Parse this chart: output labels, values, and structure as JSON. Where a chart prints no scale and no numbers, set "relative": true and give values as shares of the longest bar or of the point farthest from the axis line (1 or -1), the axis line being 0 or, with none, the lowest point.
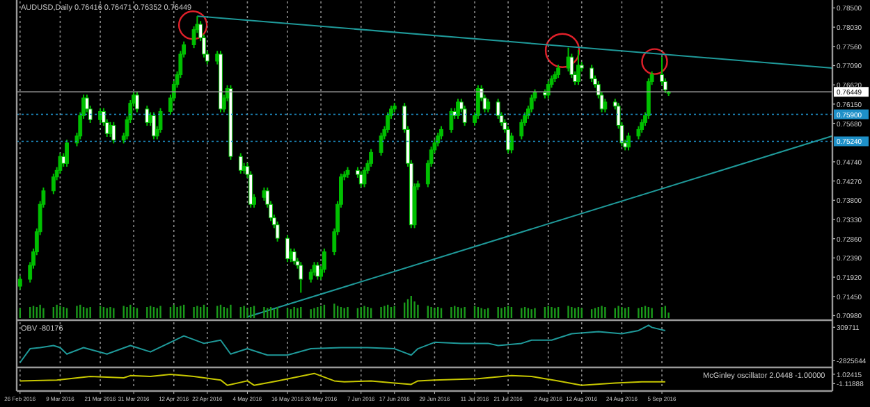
{
  "chart_data": [
    {
      "type": "candlestick",
      "title": "AUDUSD,Daily 0.76416 0.76471 0.76352 0.76449",
      "color": "#00c000",
      "grid": "x",
      "tick_labels": "y",
      "xlim": [
        "2016-02-25",
        "2016-10-26"
      ],
      "xticks": [
        {
          "value": "2016-02-26",
          "label": null
        },
        {
          "value": "2016-03-09",
          "label": null
        },
        {
          "value": "2016-03-21",
          "label": null
        },
        {
          "value": "2016-03-31",
          "label": null
        },
        {
          "value": "2016-04-12",
          "label": null
        },
        {
          "value": "2016-04-22",
          "label": null
        },
        {
          "value": "2016-05-04",
          "label": null
        },
        {
          "value": "2016-05-16",
          "label": null
        },
        {
          "value": "2016-05-26",
          "label": null
        },
        {
          "value": "2016-06-07",
          "label": null
        },
        {
          "value": "2016-06-17",
          "label": null
        },
        {
          "value": "2016-06-29",
          "label": null
        },
        {
          "value": "2016-07-11",
          "label": null
        },
        {
          "value": "2016-07-21",
          "label": null
        },
        {
          "value": "2016-08-02",
          "label": null
        },
        {
          "value": "2016-08-12",
          "label": null
        },
        {
          "value": "2016-08-24",
          "label": null
        },
        {
          "value": "2016-09-05",
          "label": null
        }
      ],
      "ylim": [
        0.7092,
        0.7866
      ],
      "yticks": [
        {
          "value": 0.785,
          "label": "0.78500"
        },
        {
          "value": 0.7803,
          "label": "0.78030"
        },
        {
          "value": 0.7756,
          "label": "0.77560"
        },
        {
          "value": 0.7709,
          "label": "0.77090"
        },
        {
          "value": 0.7662,
          "label": "0.76620"
        },
        {
          "value": 0.7615,
          "label": "0.76150"
        },
        {
          "value": 0.7568,
          "label": "0.75680"
        },
        {
          "value": 0.7474,
          "label": "0.74740"
        },
        {
          "value": 0.7427,
          "label": "0.74270"
        },
        {
          "value": 0.738,
          "label": "0.73800"
        },
        {
          "value": 0.7333,
          "label": "0.73330"
        },
        {
          "value": 0.7286,
          "label": "0.72860"
        },
        {
          "value": 0.7239,
          "label": "0.72390"
        },
        {
          "value": 0.7192,
          "label": "0.71920"
        },
        {
          "value": 0.7145,
          "label": "0.71450"
        },
        {
          "value": 0.7098,
          "label": "0.70980"
        }
      ],
      "ref_lines": [
        {
          "axis": "y",
          "value": 0.76449,
          "label": "0.76449",
          "color": "#a0a0a0",
          "line_style": "solid"
        },
        {
          "axis": "y",
          "value": 0.759,
          "label": "0.75900",
          "color": "#1e90c8",
          "line_style": "dotted"
        },
        {
          "axis": "y",
          "value": 0.7524,
          "label": "0.75240",
          "color": "#1e90c8",
          "line_style": "dotted"
        }
      ],
      "x": [
        "2016-02-26",
        "2016-02-29",
        "2016-03-01",
        "2016-03-02",
        "2016-03-03",
        "2016-03-04",
        "2016-03-07",
        "2016-03-08",
        "2016-03-09",
        "2016-03-10",
        "2016-03-11",
        "2016-03-14",
        "2016-03-15",
        "2016-03-16",
        "2016-03-17",
        "2016-03-18",
        "2016-03-21",
        "2016-03-22",
        "2016-03-23",
        "2016-03-24",
        "2016-03-25",
        "2016-03-28",
        "2016-03-29",
        "2016-03-30",
        "2016-03-31",
        "2016-04-01",
        "2016-04-04",
        "2016-04-05",
        "2016-04-06",
        "2016-04-07",
        "2016-04-08",
        "2016-04-11",
        "2016-04-12",
        "2016-04-13",
        "2016-04-14",
        "2016-04-15",
        "2016-04-18",
        "2016-04-19",
        "2016-04-20",
        "2016-04-21",
        "2016-04-22",
        "2016-04-25",
        "2016-04-26",
        "2016-04-27",
        "2016-04-28",
        "2016-04-29",
        "2016-05-02",
        "2016-05-03",
        "2016-05-04",
        "2016-05-05",
        "2016-05-06",
        "2016-05-09",
        "2016-05-10",
        "2016-05-11",
        "2016-05-12",
        "2016-05-13",
        "2016-05-16",
        "2016-05-17",
        "2016-05-18",
        "2016-05-19",
        "2016-05-20",
        "2016-05-23",
        "2016-05-24",
        "2016-05-25",
        "2016-05-26",
        "2016-05-27",
        "2016-05-30",
        "2016-05-31",
        "2016-06-01",
        "2016-06-02",
        "2016-06-03",
        "2016-06-06",
        "2016-06-07",
        "2016-06-08",
        "2016-06-09",
        "2016-06-10",
        "2016-06-13",
        "2016-06-14",
        "2016-06-15",
        "2016-06-16",
        "2016-06-17",
        "2016-06-20",
        "2016-06-21",
        "2016-06-22",
        "2016-06-23",
        "2016-06-24",
        "2016-06-27",
        "2016-06-28",
        "2016-06-29",
        "2016-06-30",
        "2016-07-01",
        "2016-07-04",
        "2016-07-05",
        "2016-07-06",
        "2016-07-07",
        "2016-07-08",
        "2016-07-11",
        "2016-07-12",
        "2016-07-13",
        "2016-07-14",
        "2016-07-15",
        "2016-07-18",
        "2016-07-19",
        "2016-07-20",
        "2016-07-21",
        "2016-07-22",
        "2016-07-25",
        "2016-07-26",
        "2016-07-27",
        "2016-07-28",
        "2016-07-29",
        "2016-08-01",
        "2016-08-02",
        "2016-08-03",
        "2016-08-04",
        "2016-08-05",
        "2016-08-08",
        "2016-08-09",
        "2016-08-10",
        "2016-08-11",
        "2016-08-12",
        "2016-08-15",
        "2016-08-16",
        "2016-08-17",
        "2016-08-18",
        "2016-08-19",
        "2016-08-22",
        "2016-08-23",
        "2016-08-24",
        "2016-08-25",
        "2016-08-26",
        "2016-08-29",
        "2016-08-30",
        "2016-08-31",
        "2016-09-01",
        "2016-09-02",
        "2016-09-05",
        "2016-09-06",
        "2016-09-07"
      ],
      "ohlc": [
        [
          0.717,
          0.7195,
          0.7162,
          0.7187
        ],
        [
          0.7187,
          0.7229,
          0.7179,
          0.7221
        ],
        [
          0.7221,
          0.7262,
          0.7213,
          0.7254
        ],
        [
          0.7254,
          0.7311,
          0.7246,
          0.7303
        ],
        [
          0.7303,
          0.7378,
          0.7295,
          0.737
        ],
        [
          0.737,
          0.7411,
          0.7362,
          0.7403
        ],
        [
          0.7403,
          0.7445,
          0.7395,
          0.7437
        ],
        [
          0.7437,
          0.7461,
          0.7429,
          0.7453
        ],
        [
          0.7453,
          0.7495,
          0.7445,
          0.7487
        ],
        [
          0.7487,
          0.7495,
          0.7462,
          0.747
        ],
        [
          0.747,
          0.7528,
          0.7462,
          0.752
        ],
        [
          0.752,
          0.7545,
          0.7512,
          0.7537
        ],
        [
          0.7537,
          0.7595,
          0.7529,
          0.7587
        ],
        [
          0.7587,
          0.7638,
          0.7579,
          0.763
        ],
        [
          0.763,
          0.7638,
          0.7595,
          0.7603
        ],
        [
          0.7603,
          0.7611,
          0.7569,
          0.7577
        ],
        [
          0.7577,
          0.7605,
          0.7569,
          0.7597
        ],
        [
          0.7597,
          0.7605,
          0.7562,
          0.757
        ],
        [
          0.757,
          0.7578,
          0.7535,
          0.7543
        ],
        [
          0.7543,
          0.7571,
          0.7535,
          0.7563
        ],
        [
          0.7563,
          0.7571,
          0.7519,
          0.7527
        ],
        [
          0.7527,
          0.7545,
          0.7519,
          0.7537
        ],
        [
          0.7537,
          0.7585,
          0.7529,
          0.7577
        ],
        [
          0.7577,
          0.7625,
          0.7569,
          0.7617
        ],
        [
          0.7617,
          0.7645,
          0.7609,
          0.7637
        ],
        [
          0.7637,
          0.7645,
          0.7595,
          0.7603
        ],
        [
          0.7603,
          0.7611,
          0.7562,
          0.757
        ],
        [
          0.757,
          0.7595,
          0.7562,
          0.7587
        ],
        [
          0.7587,
          0.7595,
          0.7529,
          0.7537
        ],
        [
          0.7537,
          0.7561,
          0.7529,
          0.7553
        ],
        [
          0.7553,
          0.7605,
          0.7545,
          0.7597
        ],
        [
          0.7597,
          0.7638,
          0.7589,
          0.763
        ],
        [
          0.763,
          0.7671,
          0.7622,
          0.7663
        ],
        [
          0.7663,
          0.7695,
          0.7655,
          0.7687
        ],
        [
          0.7687,
          0.7745,
          0.7679,
          0.7737
        ],
        [
          0.7737,
          0.7768,
          0.7729,
          0.776
        ],
        [
          0.776,
          0.7805,
          0.7752,
          0.7797
        ],
        [
          0.7797,
          0.783,
          0.7789,
          0.781
        ],
        [
          0.781,
          0.7818,
          0.7769,
          0.7777
        ],
        [
          0.7777,
          0.7785,
          0.7729,
          0.7737
        ],
        [
          0.7737,
          0.7745,
          0.7712,
          0.772
        ],
        [
          0.772,
          0.7745,
          0.7712,
          0.7737
        ],
        [
          0.7737,
          0.7745,
          0.7595,
          0.7603
        ],
        [
          0.7603,
          0.7638,
          0.7595,
          0.763
        ],
        [
          0.763,
          0.7661,
          0.7622,
          0.7653
        ],
        [
          0.7653,
          0.7661,
          0.7479,
          0.7487
        ],
        [
          0.7487,
          0.7495,
          0.7445,
          0.7453
        ],
        [
          0.7453,
          0.7471,
          0.7445,
          0.7463
        ],
        [
          0.7463,
          0.7471,
          0.7435,
          0.7443
        ],
        [
          0.7443,
          0.7451,
          0.7362,
          0.737
        ],
        [
          0.737,
          0.7395,
          0.7362,
          0.7387
        ],
        [
          0.7387,
          0.7411,
          0.7379,
          0.7403
        ],
        [
          0.7403,
          0.7411,
          0.7362,
          0.737
        ],
        [
          0.737,
          0.7378,
          0.7329,
          0.7337
        ],
        [
          0.7337,
          0.7345,
          0.7312,
          0.732
        ],
        [
          0.732,
          0.7328,
          0.7279,
          0.7287
        ],
        [
          0.7287,
          0.7295,
          0.7229,
          0.7237
        ],
        [
          0.7237,
          0.7262,
          0.7229,
          0.7254
        ],
        [
          0.7254,
          0.7262,
          0.7223,
          0.7231
        ],
        [
          0.7231,
          0.7239,
          0.7213,
          0.7221
        ],
        [
          0.7221,
          0.7229,
          0.7154,
          0.7187
        ],
        [
          0.7187,
          0.7212,
          0.7179,
          0.7204
        ],
        [
          0.7204,
          0.7229,
          0.7196,
          0.7221
        ],
        [
          0.7221,
          0.7229,
          0.7186,
          0.7194
        ],
        [
          0.7194,
          0.7219,
          0.7186,
          0.7211
        ],
        [
          0.7211,
          0.7262,
          0.7203,
          0.7254
        ],
        [
          0.7254,
          0.7311,
          0.7246,
          0.7303
        ],
        [
          0.7303,
          0.7378,
          0.7295,
          0.737
        ],
        [
          0.737,
          0.7445,
          0.7362,
          0.7437
        ],
        [
          0.7437,
          0.7451,
          0.7429,
          0.7443
        ],
        [
          0.7443,
          0.7461,
          0.7435,
          0.7453
        ],
        [
          0.7453,
          0.7461,
          0.7435,
          0.7443
        ],
        [
          0.7443,
          0.7451,
          0.7412,
          0.742
        ],
        [
          0.742,
          0.7461,
          0.7412,
          0.7453
        ],
        [
          0.7453,
          0.7478,
          0.7445,
          0.747
        ],
        [
          0.747,
          0.7505,
          0.7462,
          0.7497
        ],
        [
          0.7497,
          0.7545,
          0.7489,
          0.7537
        ],
        [
          0.7537,
          0.7561,
          0.7529,
          0.7553
        ],
        [
          0.7553,
          0.7595,
          0.7545,
          0.7587
        ],
        [
          0.7587,
          0.7611,
          0.7579,
          0.7603
        ],
        [
          0.7603,
          0.7618,
          0.7595,
          0.761
        ],
        [
          0.761,
          0.7618,
          0.7545,
          0.7553
        ],
        [
          0.7553,
          0.7561,
          0.7462,
          0.747
        ],
        [
          0.747,
          0.7478,
          0.7312,
          0.732
        ],
        [
          0.732,
          0.7421,
          0.7312,
          0.7413
        ],
        [
          0.7413,
          0.7428,
          0.7405,
          0.742
        ],
        [
          0.742,
          0.7478,
          0.7412,
          0.747
        ],
        [
          0.747,
          0.7511,
          0.7462,
          0.7503
        ],
        [
          0.7503,
          0.7528,
          0.7495,
          0.752
        ],
        [
          0.752,
          0.7545,
          0.7512,
          0.7537
        ],
        [
          0.7537,
          0.7561,
          0.7529,
          0.7553
        ],
        [
          0.7553,
          0.7605,
          0.7545,
          0.7597
        ],
        [
          0.7597,
          0.7605,
          0.7579,
          0.7587
        ],
        [
          0.7587,
          0.7628,
          0.7579,
          0.762
        ],
        [
          0.762,
          0.7628,
          0.7595,
          0.7603
        ],
        [
          0.7603,
          0.7611,
          0.7562,
          0.757
        ],
        [
          0.757,
          0.7595,
          0.7562,
          0.7587
        ],
        [
          0.7587,
          0.7661,
          0.7579,
          0.7653
        ],
        [
          0.7653,
          0.7661,
          0.7622,
          0.763
        ],
        [
          0.763,
          0.7638,
          0.7595,
          0.7603
        ],
        [
          0.7603,
          0.7628,
          0.7595,
          0.762
        ],
        [
          0.762,
          0.7628,
          0.7579,
          0.7587
        ],
        [
          0.7587,
          0.7595,
          0.7562,
          0.757
        ],
        [
          0.757,
          0.7578,
          0.7545,
          0.7553
        ],
        [
          0.7553,
          0.7561,
          0.7495,
          0.7503
        ],
        [
          0.7503,
          0.7545,
          0.7495,
          0.7537
        ],
        [
          0.7537,
          0.7578,
          0.7529,
          0.757
        ],
        [
          0.757,
          0.7595,
          0.7562,
          0.7587
        ],
        [
          0.7587,
          0.7611,
          0.7579,
          0.7603
        ],
        [
          0.7603,
          0.7638,
          0.7595,
          0.763
        ],
        [
          0.763,
          0.7651,
          0.7622,
          0.7643
        ],
        [
          0.7643,
          0.7651,
          0.7629,
          0.7637
        ],
        [
          0.7637,
          0.7671,
          0.7629,
          0.7663
        ],
        [
          0.7663,
          0.7685,
          0.7655,
          0.7677
        ],
        [
          0.7677,
          0.7695,
          0.7669,
          0.7687
        ],
        [
          0.7687,
          0.7711,
          0.7679,
          0.7703
        ],
        [
          0.7703,
          0.7753,
          0.7695,
          0.773
        ],
        [
          0.773,
          0.7738,
          0.7679,
          0.7687
        ],
        [
          0.7687,
          0.7695,
          0.7662,
          0.767
        ],
        [
          0.767,
          0.7747,
          0.7662,
          0.771
        ],
        [
          0.771,
          0.7718,
          0.7695,
          0.7703
        ],
        [
          0.7703,
          0.7711,
          0.7669,
          0.7677
        ],
        [
          0.7677,
          0.7685,
          0.7655,
          0.7663
        ],
        [
          0.7663,
          0.7671,
          0.7629,
          0.7637
        ],
        [
          0.7637,
          0.7645,
          0.7595,
          0.7603
        ],
        [
          0.7603,
          0.7628,
          0.7595,
          0.762
        ],
        [
          0.762,
          0.7628,
          0.7602,
          0.761
        ],
        [
          0.761,
          0.7618,
          0.7555,
          0.7563
        ],
        [
          0.7563,
          0.7571,
          0.7512,
          0.752
        ],
        [
          0.752,
          0.7528,
          0.7502,
          0.751
        ],
        [
          0.751,
          0.7545,
          0.7502,
          0.7537
        ],
        [
          0.7537,
          0.7561,
          0.7529,
          0.7553
        ],
        [
          0.7553,
          0.7578,
          0.7545,
          0.757
        ],
        [
          0.757,
          0.7595,
          0.7562,
          0.7587
        ],
        [
          0.7587,
          0.7678,
          0.7579,
          0.767
        ],
        [
          0.767,
          0.7695,
          0.7662,
          0.7687
        ],
        [
          0.7687,
          0.773,
          0.7662,
          0.767
        ],
        [
          0.767,
          0.7678,
          0.7642,
          0.765
        ],
        [
          0.76416,
          0.76471,
          0.76352,
          0.76449
        ]
      ],
      "series": [
        {
          "type": "line",
          "color": "#1f9a9a",
          "x": [
            "2016-04-19",
            "2016-10-26"
          ],
          "values": [
            0.783,
            0.7703
          ]
        },
        {
          "type": "line",
          "color": "#1f9a9a",
          "x": [
            "2016-05-04",
            "2016-10-26"
          ],
          "values": [
            0.7095,
            0.7537
          ]
        }
      ]
    },
    {
      "type": "bar",
      "relative": true,
      "color": "#1a9a1a",
      "tick_labels": false,
      "xlim": [
        "2016-02-25",
        "2016-10-26"
      ],
      "x": [
        "2016-02-26",
        "2016-02-29",
        "2016-03-01",
        "2016-03-02",
        "2016-03-03",
        "2016-03-04",
        "2016-03-07",
        "2016-03-08",
        "2016-03-09",
        "2016-03-10",
        "2016-03-11",
        "2016-03-14",
        "2016-03-15",
        "2016-03-16",
        "2016-03-17",
        "2016-03-18",
        "2016-03-21",
        "2016-03-22",
        "2016-03-23",
        "2016-03-24",
        "2016-03-25",
        "2016-03-28",
        "2016-03-29",
        "2016-03-30",
        "2016-03-31",
        "2016-04-01",
        "2016-04-04",
        "2016-04-05",
        "2016-04-06",
        "2016-04-07",
        "2016-04-08",
        "2016-04-11",
        "2016-04-12",
        "2016-04-13",
        "2016-04-14",
        "2016-04-15",
        "2016-04-18",
        "2016-04-19",
        "2016-04-20",
        "2016-04-21",
        "2016-04-22",
        "2016-04-25",
        "2016-04-26",
        "2016-04-27",
        "2016-04-28",
        "2016-04-29",
        "2016-05-02",
        "2016-05-03",
        "2016-05-04",
        "2016-05-05",
        "2016-05-06",
        "2016-05-09",
        "2016-05-10",
        "2016-05-11",
        "2016-05-12",
        "2016-05-13",
        "2016-05-16",
        "2016-05-17",
        "2016-05-18",
        "2016-05-19",
        "2016-05-20",
        "2016-05-23",
        "2016-05-24",
        "2016-05-25",
        "2016-05-26",
        "2016-05-27",
        "2016-05-30",
        "2016-05-31",
        "2016-06-01",
        "2016-06-02",
        "2016-06-03",
        "2016-06-06",
        "2016-06-07",
        "2016-06-08",
        "2016-06-09",
        "2016-06-10",
        "2016-06-13",
        "2016-06-14",
        "2016-06-15",
        "2016-06-16",
        "2016-06-17",
        "2016-06-20",
        "2016-06-21",
        "2016-06-22",
        "2016-06-23",
        "2016-06-24",
        "2016-06-27",
        "2016-06-28",
        "2016-06-29",
        "2016-06-30",
        "2016-07-01",
        "2016-07-04",
        "2016-07-05",
        "2016-07-06",
        "2016-07-07",
        "2016-07-08",
        "2016-07-11",
        "2016-07-12",
        "2016-07-13",
        "2016-07-14",
        "2016-07-15",
        "2016-07-18",
        "2016-07-19",
        "2016-07-20",
        "2016-07-21",
        "2016-07-22",
        "2016-07-25",
        "2016-07-26",
        "2016-07-27",
        "2016-07-28",
        "2016-07-29",
        "2016-08-01",
        "2016-08-02",
        "2016-08-03",
        "2016-08-04",
        "2016-08-05",
        "2016-08-08",
        "2016-08-09",
        "2016-08-10",
        "2016-08-11",
        "2016-08-12",
        "2016-08-15",
        "2016-08-16",
        "2016-08-17",
        "2016-08-18",
        "2016-08-19",
        "2016-08-22",
        "2016-08-23",
        "2016-08-24",
        "2016-08-25",
        "2016-08-26",
        "2016-08-29",
        "2016-08-30",
        "2016-08-31",
        "2016-09-01",
        "2016-09-02",
        "2016-09-05",
        "2016-09-06",
        "2016-09-07"
      ],
      "values": [
        0.45,
        0.5,
        0.55,
        0.5,
        0.6,
        0.45,
        0.5,
        0.6,
        0.55,
        0.5,
        0.45,
        0.55,
        0.6,
        0.5,
        0.45,
        0.5,
        0.55,
        0.5,
        0.45,
        0.5,
        0.45,
        0.55,
        0.5,
        0.6,
        0.5,
        0.45,
        0.5,
        0.55,
        0.5,
        0.45,
        0.55,
        0.5,
        0.6,
        0.5,
        0.55,
        0.6,
        0.5,
        0.55,
        0.5,
        0.6,
        0.5,
        0.55,
        0.6,
        0.5,
        0.45,
        0.6,
        0.5,
        0.55,
        0.45,
        0.5,
        0.55,
        0.5,
        0.45,
        0.5,
        0.4,
        0.5,
        0.45,
        0.4,
        0.5,
        0.45,
        0.5,
        0.4,
        0.45,
        0.5,
        0.55,
        0.6,
        0.65,
        0.55,
        0.5,
        0.45,
        0.5,
        0.45,
        0.5,
        0.55,
        0.5,
        0.45,
        0.5,
        0.55,
        0.6,
        0.5,
        0.55,
        0.7,
        0.85,
        1,
        0.75,
        0.6,
        0.55,
        0.5,
        0.45,
        0.5,
        0.45,
        0.5,
        0.55,
        0.5,
        0.45,
        0.5,
        0.55,
        0.5,
        0.45,
        0.4,
        0.45,
        0.5,
        0.45,
        0.5,
        0.55,
        0.5,
        0.45,
        0.5,
        0.45,
        0.4,
        0.45,
        0.5,
        0.55,
        0.5,
        0.45,
        0.5,
        0.55,
        0.5,
        0.45,
        0.5,
        0.45,
        0.4,
        0.45,
        0.5,
        0.55,
        0.5,
        0.45,
        0.55,
        0.5,
        0.45,
        0.5,
        0.45,
        0.5,
        0.55,
        0.5,
        0.45,
        0.5,
        0.55,
        0.25
      ]
    },
    {
      "type": "line",
      "title": "OBV -80176",
      "grid": "x",
      "tick_labels": "y",
      "xlim": [
        "2016-02-25",
        "2016-10-26"
      ],
      "ylim": [
        -3260000,
        780000
      ],
      "xticks": [
        {
          "value": "2016-02-26",
          "label": null
        },
        {
          "value": "2016-03-09",
          "label": null
        },
        {
          "value": "2016-03-21",
          "label": null
        },
        {
          "value": "2016-03-31",
          "label": null
        },
        {
          "value": "2016-04-12",
          "label": null
        },
        {
          "value": "2016-04-22",
          "label": null
        },
        {
          "value": "2016-05-04",
          "label": null
        },
        {
          "value": "2016-05-16",
          "label": null
        },
        {
          "value": "2016-05-26",
          "label": null
        },
        {
          "value": "2016-06-07",
          "label": null
        },
        {
          "value": "2016-06-17",
          "label": null
        },
        {
          "value": "2016-06-29",
          "label": null
        },
        {
          "value": "2016-07-11",
          "label": null
        },
        {
          "value": "2016-07-21",
          "label": null
        },
        {
          "value": "2016-08-02",
          "label": null
        },
        {
          "value": "2016-08-12",
          "label": null
        },
        {
          "value": "2016-08-24",
          "label": null
        },
        {
          "value": "2016-09-05",
          "label": null
        }
      ],
      "yticks": [
        309711,
        -2825644
      ],
      "series": [
        {
          "color": "#1f9a9a",
          "x": [
            "2016-02-26",
            "2016-02-29",
            "2016-03-03",
            "2016-03-07",
            "2016-03-09",
            "2016-03-11",
            "2016-03-16",
            "2016-03-23",
            "2016-03-30",
            "2016-04-05",
            "2016-04-15",
            "2016-04-21",
            "2016-04-26",
            "2016-04-29",
            "2016-05-04",
            "2016-05-10",
            "2016-05-16",
            "2016-05-23",
            "2016-06-01",
            "2016-06-09",
            "2016-06-17",
            "2016-06-22",
            "2016-06-24",
            "2016-06-29",
            "2016-07-07",
            "2016-07-15",
            "2016-07-18",
            "2016-07-25",
            "2016-07-28",
            "2016-08-03",
            "2016-08-09",
            "2016-08-17",
            "2016-08-24",
            "2016-08-29",
            "2016-09-01",
            "2016-09-02",
            "2016-09-06"
          ],
          "values": [
            -3000000,
            -1700000,
            -1600000,
            -1400000,
            -1600000,
            -2200000,
            -1600000,
            -2200000,
            -1400000,
            -2000000,
            -500000,
            -1200000,
            -900000,
            -2200000,
            -1700000,
            -2300000,
            -2300000,
            -1700000,
            -1600000,
            -1600000,
            -1700000,
            -2300000,
            -1700000,
            -1100000,
            -1200000,
            -1200000,
            -1400000,
            -1200000,
            -900000,
            -900000,
            -300000,
            -100000,
            -300000,
            0,
            500000,
            300000,
            0
          ]
        }
      ]
    },
    {
      "type": "line",
      "title": "McGinley oscillator 2.0448 -1.00000",
      "grid": "x",
      "xlim": [
        "2016-02-25",
        "2016-10-26"
      ],
      "ylim": [
        -2.34,
        2.1
      ],
      "xticks": [
        {
          "value": "2016-02-26",
          "label": "26 Feb 2016"
        },
        {
          "value": "2016-03-09",
          "label": "9 Mar 2016"
        },
        {
          "value": "2016-03-21",
          "label": "21 Mar 2016"
        },
        {
          "value": "2016-03-31",
          "label": "31 Mar 2016"
        },
        {
          "value": "2016-04-12",
          "label": "12 Apr 2016"
        },
        {
          "value": "2016-04-22",
          "label": "22 Apr 2016"
        },
        {
          "value": "2016-05-04",
          "label": "4 May 2016"
        },
        {
          "value": "2016-05-16",
          "label": "16 May 2016"
        },
        {
          "value": "2016-05-26",
          "label": "26 May 2016"
        },
        {
          "value": "2016-06-07",
          "label": "7 Jun 2016"
        },
        {
          "value": "2016-06-17",
          "label": "17 Jun 2016"
        },
        {
          "value": "2016-06-29",
          "label": "29 Jun 2016"
        },
        {
          "value": "2016-07-11",
          "label": "11 Jul 2016"
        },
        {
          "value": "2016-07-21",
          "label": "21 Jul 2016"
        },
        {
          "value": "2016-08-02",
          "label": "2 Aug 2016"
        },
        {
          "value": "2016-08-12",
          "label": "12 Aug 2016"
        },
        {
          "value": "2016-08-24",
          "label": "24 Aug 2016"
        },
        {
          "value": "2016-09-05",
          "label": "5 Sep 2016"
        }
      ],
      "yticks": [
        1.02415,
        -1.11888
      ],
      "series": [
        {
          "color": "#c8c800",
          "x": [
            "2016-02-26",
            "2016-03-08",
            "2016-03-18",
            "2016-03-28",
            "2016-03-30",
            "2016-04-05",
            "2016-04-11",
            "2016-04-18",
            "2016-04-26",
            "2016-04-28",
            "2016-05-04",
            "2016-05-06",
            "2016-05-13",
            "2016-05-24",
            "2016-05-30",
            "2016-06-02",
            "2016-06-10",
            "2016-06-17",
            "2016-06-22",
            "2016-06-24",
            "2016-06-29",
            "2016-07-12",
            "2016-07-22",
            "2016-07-28",
            "2016-08-05",
            "2016-08-12",
            "2016-08-22",
            "2016-08-30",
            "2016-09-06"
          ],
          "values": [
            -0.5,
            -0.3,
            0.5,
            0.2,
            0.7,
            0.5,
            1.0,
            0.5,
            -0.3,
            -1.5,
            -0.5,
            -1.5,
            -0.5,
            1.2,
            -0.5,
            -0.7,
            -0.5,
            -1.0,
            -1.3,
            -0.5,
            -0.3,
            0.0,
            0.7,
            0.5,
            -0.5,
            -1.5,
            -1.0,
            -0.7,
            -0.7
          ]
        }
      ]
    }
  ]
}
